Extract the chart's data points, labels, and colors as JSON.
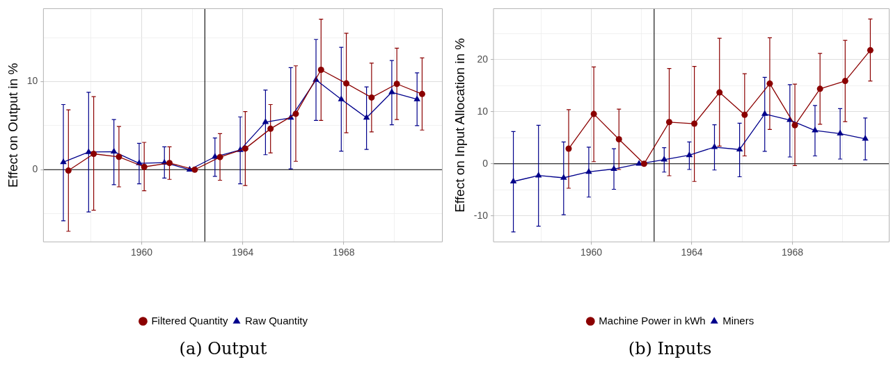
{
  "chart_data": [
    {
      "type": "line",
      "ylabel": "Effect on Output in %",
      "annotations": [
        "(a) Output"
      ],
      "xlim": [
        1956.11,
        1971.9
      ],
      "xticks": [
        {
          "value": 1958,
          "label": null
        },
        1960,
        {
          "value": 1962,
          "label": null
        },
        1964,
        {
          "value": 1966,
          "label": null
        },
        1968,
        {
          "value": 1970,
          "label": null
        }
      ],
      "ylim": [
        -8.2,
        18.3
      ],
      "yticks": [
        {
          "value": -5,
          "label": null
        },
        0,
        {
          "value": 5,
          "label": null
        },
        10,
        {
          "value": 15,
          "label": null
        }
      ],
      "grid": true,
      "legend": "bottom",
      "ref_lines": [
        {
          "axis": "x",
          "value": 1962.5,
          "color": "#000000"
        },
        {
          "axis": "y",
          "value": 0,
          "color": "#000000"
        }
      ],
      "series": [
        {
          "name": "Filtered Quantity",
          "color": "#8b0000",
          "marker": "circle",
          "x": [
            1957.1,
            1958.1,
            1959.1,
            1960.1,
            1961.1,
            1962.1,
            1963.1,
            1964.1,
            1965.1,
            1966.1,
            1967.1,
            1968.1,
            1969.1,
            1970.1,
            1971.1
          ],
          "values": [
            -0.1,
            1.8,
            1.46,
            0.32,
            0.76,
            0,
            1.43,
            2.4,
            4.65,
            6.35,
            11.35,
            9.8,
            8.2,
            9.75,
            8.6
          ],
          "errors": [
            [
              -7.0,
              6.8
            ],
            [
              -4.6,
              8.3
            ],
            [
              -1.95,
              4.9
            ],
            [
              -2.4,
              3.1
            ],
            [
              -1.1,
              2.6
            ],
            null,
            [
              -1.2,
              4.1
            ],
            [
              -1.8,
              6.6
            ],
            [
              1.9,
              7.4
            ],
            [
              0.95,
              11.8
            ],
            [
              5.6,
              17.1
            ],
            [
              4.2,
              15.5
            ],
            [
              4.3,
              12.1
            ],
            [
              5.7,
              13.8
            ],
            [
              4.5,
              12.7
            ]
          ]
        },
        {
          "name": "Raw Quantity",
          "color": "#00008b",
          "marker": "triangle",
          "x": [
            1956.9,
            1957.9,
            1958.9,
            1959.9,
            1960.9,
            1961.9,
            1962.9,
            1963.9,
            1964.9,
            1965.9,
            1966.9,
            1967.9,
            1968.9,
            1969.9,
            1970.9
          ],
          "values": [
            0.86,
            2.0,
            2.05,
            0.73,
            0.8,
            0,
            1.46,
            2.24,
            5.4,
            5.9,
            10.2,
            8.0,
            5.9,
            8.8,
            8.0
          ],
          "errors": [
            [
              -5.8,
              7.4
            ],
            [
              -4.8,
              8.8
            ],
            [
              -1.7,
              5.7
            ],
            [
              -1.6,
              3.0
            ],
            [
              -0.95,
              2.6
            ],
            null,
            [
              -0.76,
              3.6
            ],
            [
              -1.6,
              6.0
            ],
            [
              1.7,
              9.05
            ],
            [
              0.1,
              11.6
            ],
            [
              5.6,
              14.8
            ],
            [
              2.1,
              13.9
            ],
            [
              2.3,
              9.4
            ],
            [
              5.1,
              12.4
            ],
            [
              5.0,
              11.0
            ]
          ]
        }
      ]
    },
    {
      "type": "line",
      "ylabel": "Effect on Input Allocation in %",
      "annotations": [
        "(b) Inputs"
      ],
      "xlim": [
        1956.11,
        1971.85
      ],
      "xticks": [
        {
          "value": 1958,
          "label": null
        },
        1960,
        {
          "value": 1962,
          "label": null
        },
        1964,
        {
          "value": 1966,
          "label": null
        },
        1968,
        {
          "value": 1970,
          "label": null
        }
      ],
      "ylim": [
        -15,
        29.8
      ],
      "yticks": [
        -10,
        {
          "value": -5,
          "label": null
        },
        0,
        {
          "value": 5,
          "label": null
        },
        10,
        {
          "value": 15,
          "label": null
        },
        20,
        {
          "value": 25,
          "label": null
        }
      ],
      "grid": true,
      "legend": "bottom",
      "ref_lines": [
        {
          "axis": "x",
          "value": 1962.5,
          "color": "#000000"
        },
        {
          "axis": "y",
          "value": 0,
          "color": "#000000"
        }
      ],
      "series": [
        {
          "name": "Machine Power in kWh",
          "color": "#8b0000",
          "marker": "circle",
          "x": [
            1959.1,
            1960.1,
            1961.1,
            1962.1,
            1963.1,
            1964.1,
            1965.1,
            1966.1,
            1967.1,
            1968.1,
            1969.1,
            1970.1,
            1971.1
          ],
          "values": [
            2.9,
            9.56,
            4.7,
            0,
            8.0,
            7.7,
            13.7,
            9.4,
            15.4,
            7.4,
            14.4,
            15.9,
            21.8
          ],
          "errors": [
            [
              -4.7,
              10.4
            ],
            [
              0.4,
              18.6
            ],
            [
              -1.1,
              10.5
            ],
            null,
            [
              -2.3,
              18.3
            ],
            [
              -3.4,
              18.7
            ],
            [
              3.4,
              24.1
            ],
            [
              1.5,
              17.3
            ],
            [
              6.6,
              24.2
            ],
            [
              -0.35,
              15.3
            ],
            [
              7.6,
              21.2
            ],
            [
              8.1,
              23.7
            ],
            [
              15.9,
              27.8
            ]
          ]
        },
        {
          "name": "Miners",
          "color": "#00008b",
          "marker": "triangle",
          "x": [
            1956.9,
            1957.9,
            1958.9,
            1959.9,
            1960.9,
            1961.9,
            1962.9,
            1963.9,
            1964.9,
            1965.9,
            1966.9,
            1967.9,
            1968.9,
            1969.9,
            1970.9
          ],
          "values": [
            -3.4,
            -2.26,
            -2.7,
            -1.55,
            -1.0,
            0,
            0.8,
            1.64,
            3.2,
            2.74,
            9.56,
            8.4,
            6.4,
            5.8,
            4.8
          ],
          "errors": [
            [
              -13.1,
              6.2
            ],
            [
              -12.0,
              7.4
            ],
            [
              -9.8,
              4.2
            ],
            [
              -6.4,
              3.2
            ],
            [
              -4.9,
              2.9
            ],
            null,
            [
              -1.6,
              3.1
            ],
            [
              -1.1,
              4.2
            ],
            [
              -1.2,
              7.5
            ],
            [
              -2.5,
              7.8
            ],
            [
              2.4,
              16.6
            ],
            [
              1.3,
              15.2
            ],
            [
              1.5,
              11.2
            ],
            [
              0.9,
              10.6
            ],
            [
              0.75,
              8.8
            ]
          ]
        }
      ]
    }
  ]
}
